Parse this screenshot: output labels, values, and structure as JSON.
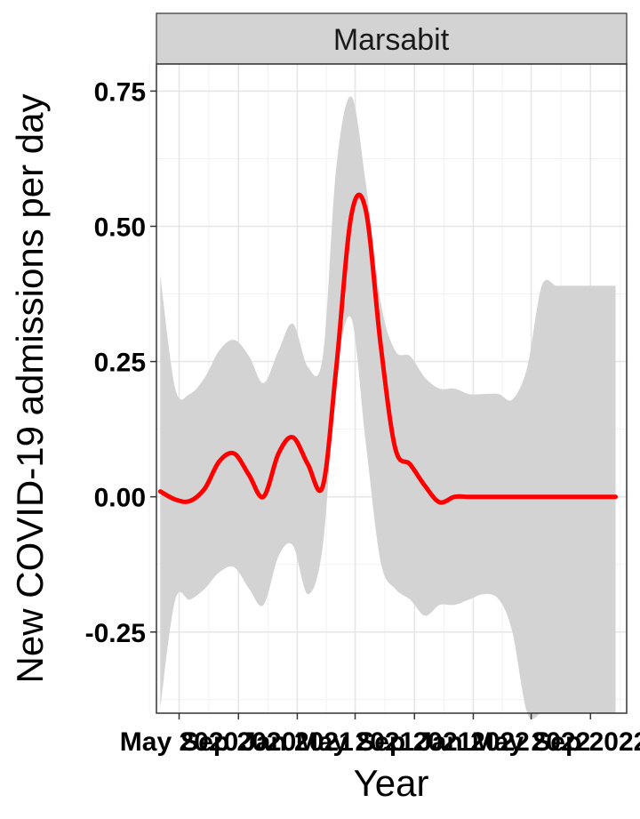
{
  "chart_data": {
    "type": "line",
    "facet_label": "Marsabit",
    "xlabel": "Year",
    "ylabel": "New COVID-19 admissions per day",
    "ylim": [
      -0.4,
      0.8
    ],
    "y_ticks": [
      -0.25,
      0.0,
      0.25,
      0.5,
      0.75
    ],
    "y_tick_labels": [
      "-0.25",
      "0.00",
      "0.25",
      "0.50",
      "0.75"
    ],
    "x_tick_labels": [
      "May 2020",
      "Sep 2020",
      "Jan 2021",
      "May 2021",
      "Sep 2021",
      "Jan 2022",
      "May 2022",
      "Sep 2022"
    ],
    "x_ticks": [
      "2020-05-01",
      "2020-09-01",
      "2021-01-01",
      "2021-05-01",
      "2021-09-01",
      "2022-01-01",
      "2022-05-01",
      "2022-09-01"
    ],
    "xlim": [
      "2020-03-15",
      "2022-11-15"
    ],
    "grid": true,
    "line_color": "#ff0000",
    "band_color": "#d3d3d3",
    "series": [
      {
        "x": [
          "2020-03-23",
          "2020-04-23",
          "2020-05-23",
          "2020-06-23",
          "2020-07-23",
          "2020-08-23",
          "2020-09-23",
          "2020-10-23",
          "2020-11-23",
          "2020-12-23",
          "2021-01-23",
          "2021-02-23",
          "2021-03-23",
          "2021-04-23",
          "2021-05-23",
          "2021-06-23",
          "2021-07-23",
          "2021-08-23",
          "2021-09-23",
          "2021-10-23",
          "2021-11-23",
          "2021-12-23",
          "2022-01-23",
          "2022-02-23",
          "2022-03-23",
          "2022-04-23",
          "2022-05-23",
          "2022-06-23",
          "2022-07-23",
          "2022-08-23",
          "2022-09-23",
          "2022-10-23"
        ],
        "values": [
          0.01,
          -0.005,
          -0.008,
          0.015,
          0.065,
          0.08,
          0.04,
          0.0,
          0.08,
          0.11,
          0.06,
          0.02,
          0.24,
          0.52,
          0.53,
          0.28,
          0.09,
          0.06,
          0.02,
          -0.01,
          0.0,
          0.0,
          0.0,
          0.0,
          0.0,
          0.0,
          0.0,
          0.0,
          0.0,
          0.0,
          0.0,
          0.0
        ],
        "upper": [
          0.41,
          0.2,
          0.19,
          0.22,
          0.27,
          0.29,
          0.26,
          0.21,
          0.27,
          0.32,
          0.24,
          0.26,
          0.61,
          0.74,
          0.58,
          0.36,
          0.27,
          0.26,
          0.22,
          0.2,
          0.2,
          0.19,
          0.19,
          0.19,
          0.18,
          0.24,
          0.39,
          0.39,
          0.39,
          0.39,
          0.39,
          0.39
        ],
        "lower": [
          -0.39,
          -0.19,
          -0.19,
          -0.17,
          -0.14,
          -0.13,
          -0.17,
          -0.2,
          -0.11,
          -0.09,
          -0.18,
          -0.09,
          0.22,
          0.33,
          0.1,
          -0.12,
          -0.17,
          -0.19,
          -0.22,
          -0.2,
          -0.2,
          -0.19,
          -0.18,
          -0.19,
          -0.25,
          -0.4,
          -0.4,
          -0.4,
          -0.4,
          -0.4,
          -0.4,
          -0.4
        ]
      }
    ]
  }
}
